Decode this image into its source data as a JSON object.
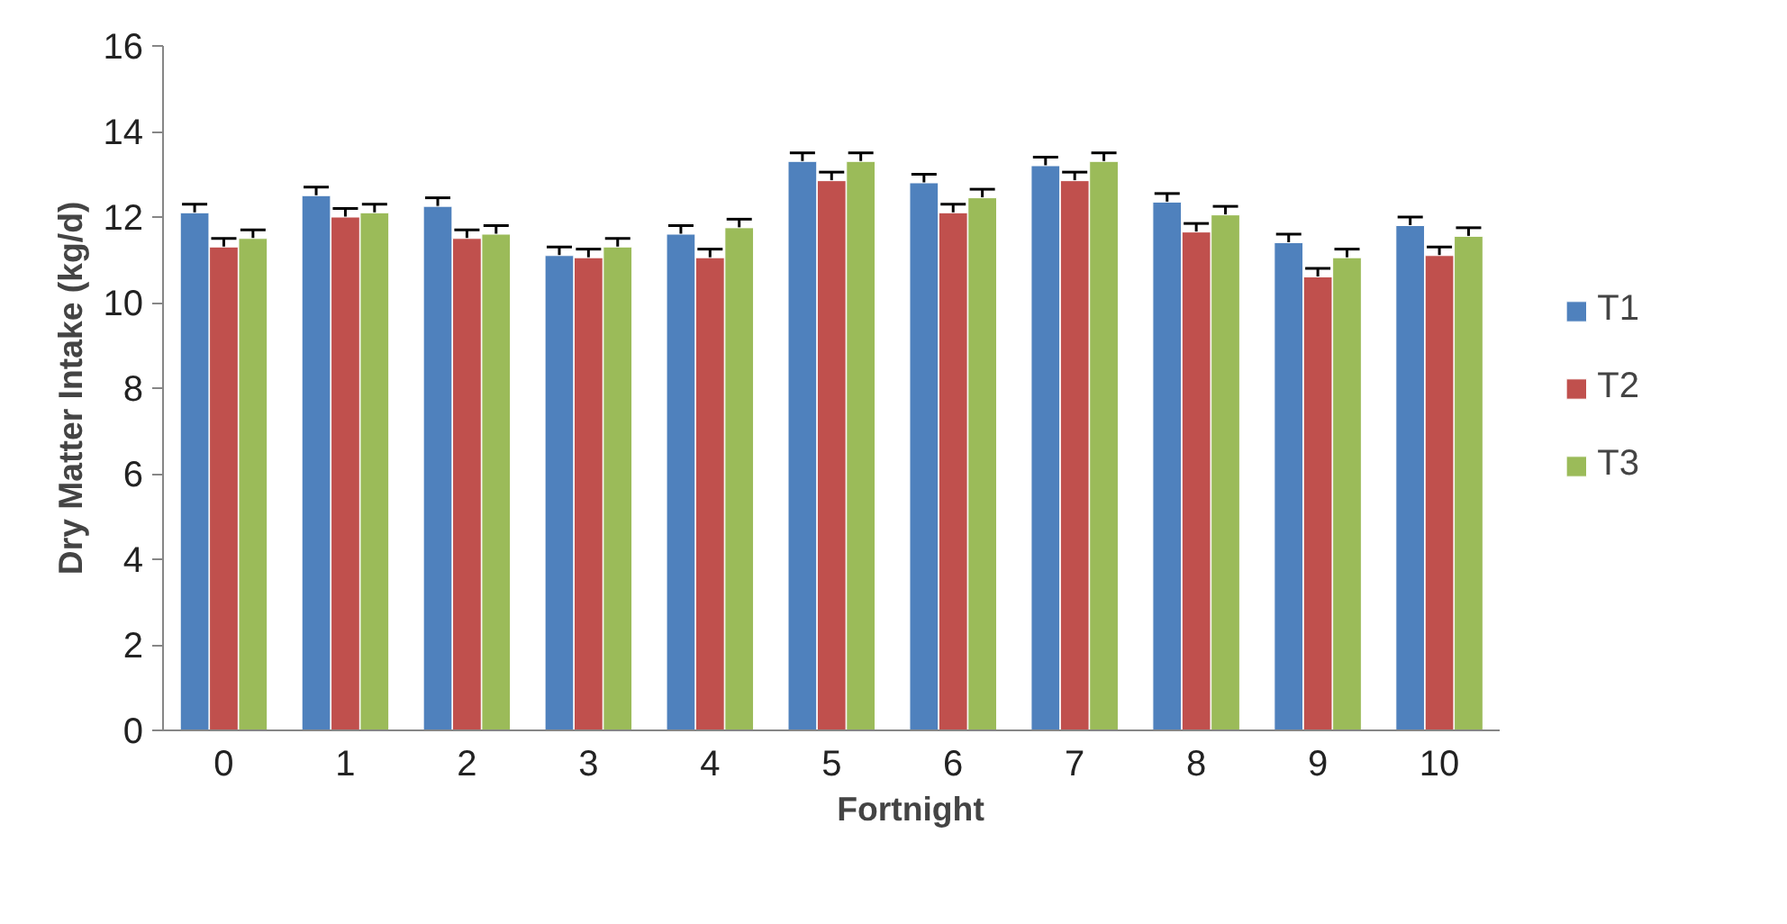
{
  "chart_data": {
    "type": "bar",
    "xlabel": "Fortnight",
    "ylabel": "Dry Matter Intake (kg/d)",
    "categories": [
      "0",
      "1",
      "2",
      "3",
      "4",
      "5",
      "6",
      "7",
      "8",
      "9",
      "10"
    ],
    "series": [
      {
        "name": "T1",
        "color": "#4f81bd",
        "values": [
          12.1,
          12.5,
          12.25,
          11.1,
          11.6,
          13.3,
          12.8,
          13.2,
          12.35,
          11.4,
          11.8
        ],
        "errors": [
          0.2,
          0.2,
          0.2,
          0.2,
          0.2,
          0.2,
          0.2,
          0.2,
          0.2,
          0.2,
          0.2
        ]
      },
      {
        "name": "T2",
        "color": "#c0504d",
        "values": [
          11.3,
          12.0,
          11.5,
          11.05,
          11.05,
          12.85,
          12.1,
          12.85,
          11.65,
          10.6,
          11.1
        ],
        "errors": [
          0.2,
          0.2,
          0.2,
          0.2,
          0.2,
          0.2,
          0.2,
          0.2,
          0.2,
          0.2,
          0.2
        ]
      },
      {
        "name": "T3",
        "color": "#9bbb59",
        "values": [
          11.5,
          12.1,
          11.6,
          11.3,
          11.75,
          13.3,
          12.45,
          13.3,
          12.05,
          11.05,
          11.55
        ],
        "errors": [
          0.2,
          0.2,
          0.2,
          0.2,
          0.2,
          0.2,
          0.2,
          0.2,
          0.2,
          0.2,
          0.2
        ]
      }
    ],
    "ylim": [
      0,
      16
    ],
    "yticks": [
      0,
      2,
      4,
      6,
      8,
      10,
      12,
      14,
      16
    ],
    "grid": false,
    "legend": "right"
  }
}
